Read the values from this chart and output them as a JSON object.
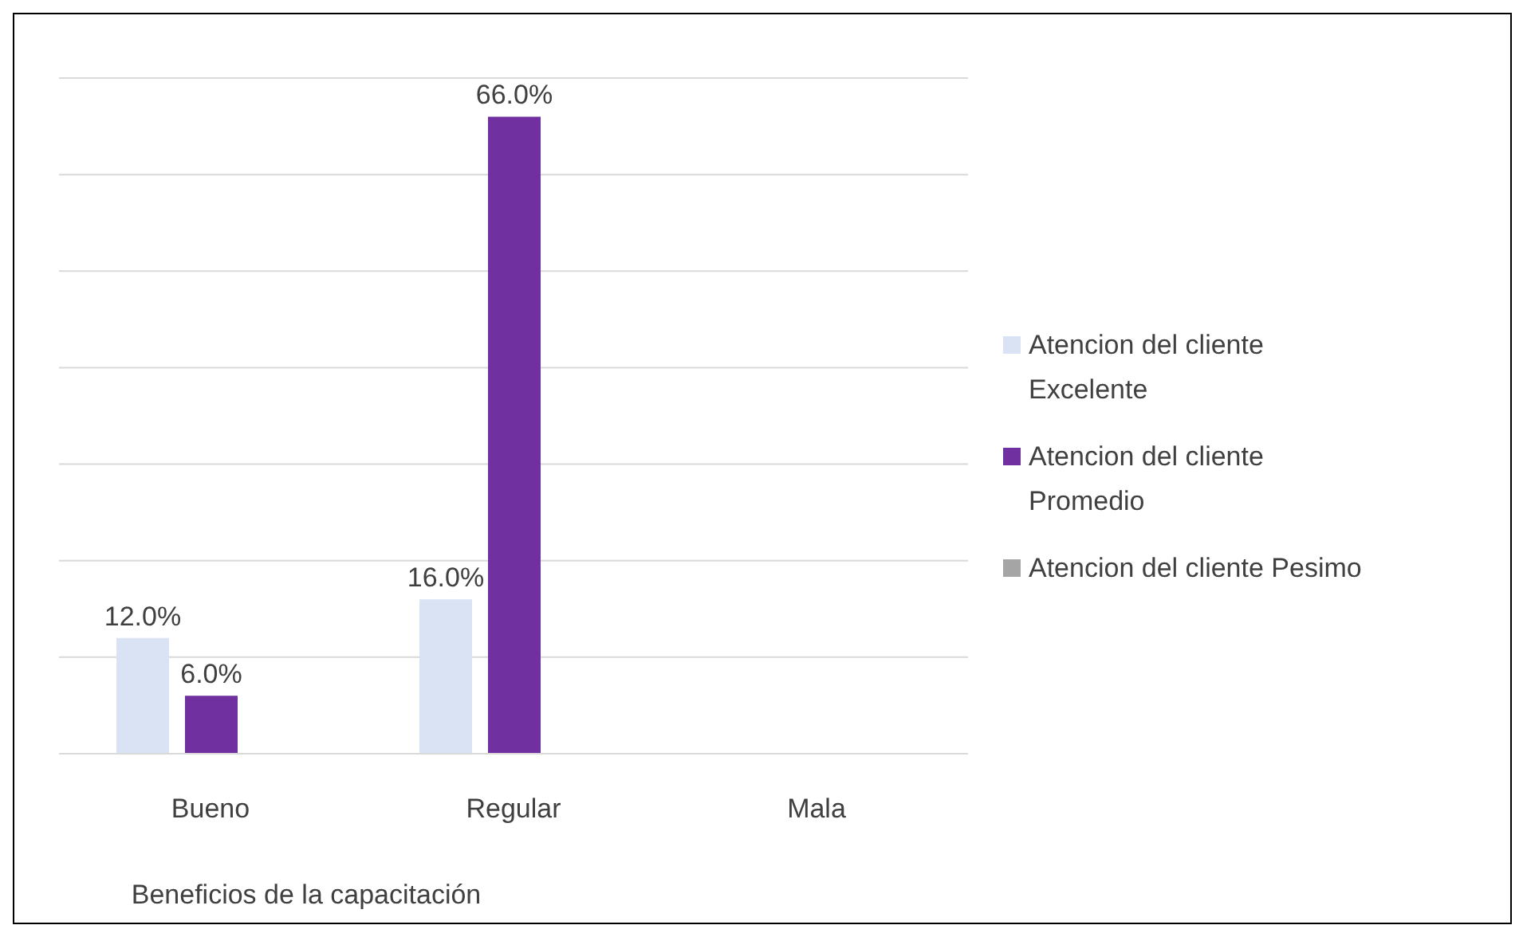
{
  "chart_data": {
    "type": "bar",
    "xlabel": "Beneficios de la capacitación",
    "categories": [
      "Bueno",
      "Regular",
      "Mala"
    ],
    "series": [
      {
        "name": "Atencion del cliente Excelente",
        "color": "#dae3f3",
        "values": [
          12,
          16,
          null
        ],
        "value_labels": [
          "12.0%",
          "16.0%",
          null
        ]
      },
      {
        "name": "Atencion del cliente Promedio",
        "color": "#7030a0",
        "values": [
          6,
          66,
          null
        ],
        "value_labels": [
          "6.0%",
          "66.0%",
          null
        ]
      },
      {
        "name": "Atencion del cliente Pesimo",
        "color": "#a5a5a5",
        "values": [
          null,
          null,
          null
        ],
        "value_labels": [
          null,
          null,
          null
        ]
      }
    ],
    "tick_labels": "x",
    "grid": "y",
    "legend": "right"
  }
}
